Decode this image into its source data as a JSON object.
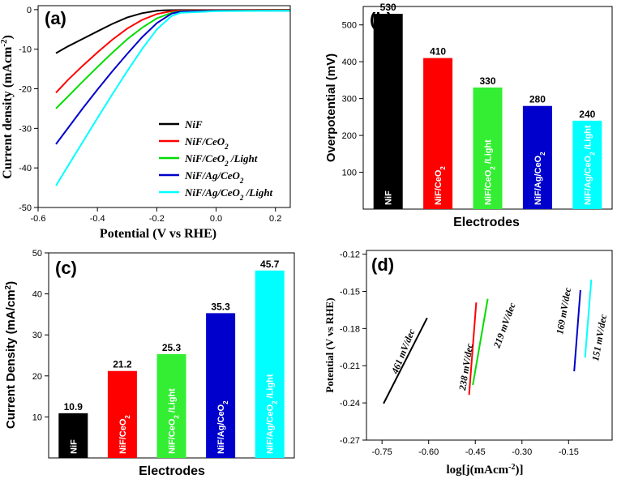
{
  "chart_data": [
    {
      "id": "a",
      "type": "line",
      "panel_label": "(a)",
      "xlabel": "Potential (V vs RHE)",
      "ylabel": "Current density (mAcm",
      "ylabel_sup": "-2",
      "ylabel_close": ")",
      "xlim": [
        -0.6,
        0.25
      ],
      "ylim": [
        -50,
        1
      ],
      "xticks": [
        -0.6,
        -0.4,
        -0.2,
        0.0,
        0.2
      ],
      "xtick_labels": [
        "-0.6",
        "-0.4",
        "-0.2",
        "0.0",
        "0.2"
      ],
      "yticks": [
        0,
        -10,
        -20,
        -30,
        -40,
        -50
      ],
      "ytick_labels": [
        "0",
        "-10",
        "-20",
        "-30",
        "-40",
        "-50"
      ],
      "series": [
        {
          "name": "NiF",
          "color": "#000000",
          "x": [
            -0.54,
            -0.5,
            -0.45,
            -0.4,
            -0.35,
            -0.3,
            -0.25,
            -0.2,
            -0.17,
            -0.12,
            0.0,
            0.25
          ],
          "y": [
            -11,
            -9.3,
            -7.4,
            -5.5,
            -3.6,
            -2.0,
            -0.9,
            -0.3,
            -0.15,
            -0.1,
            -0.1,
            -0.05
          ]
        },
        {
          "name": "NiF/CeO",
          "sub": "2",
          "suffix": "",
          "color": "#ff0000",
          "x": [
            -0.54,
            -0.5,
            -0.45,
            -0.4,
            -0.35,
            -0.3,
            -0.25,
            -0.2,
            -0.15,
            -0.12,
            0.0,
            0.25
          ],
          "y": [
            -21,
            -17.8,
            -14.2,
            -10.8,
            -7.6,
            -4.8,
            -2.6,
            -1.1,
            -0.4,
            -0.2,
            -0.15,
            -0.1
          ]
        },
        {
          "name": "NiF/CeO",
          "sub": "2",
          "suffix": " /Light",
          "color": "#00dd00",
          "x": [
            -0.54,
            -0.5,
            -0.45,
            -0.4,
            -0.35,
            -0.3,
            -0.25,
            -0.2,
            -0.15,
            -0.12,
            0.0,
            0.25
          ],
          "y": [
            -25,
            -22,
            -18.2,
            -14.5,
            -10.9,
            -7.5,
            -4.6,
            -2.2,
            -0.8,
            -0.4,
            -0.25,
            -0.2
          ]
        },
        {
          "name": "NiF/Ag/CeO",
          "sub": "2",
          "suffix": "",
          "color": "#0000cc",
          "x": [
            -0.54,
            -0.5,
            -0.45,
            -0.4,
            -0.35,
            -0.3,
            -0.25,
            -0.2,
            -0.15,
            -0.12,
            0.0,
            0.25
          ],
          "y": [
            -34,
            -30,
            -25,
            -20.2,
            -15.6,
            -11.2,
            -7.0,
            -3.4,
            -1.0,
            -0.5,
            -0.3,
            -0.3
          ]
        },
        {
          "name": "NiF/Ag/CeO",
          "sub": "2",
          "suffix": " /Light",
          "color": "#00ffff",
          "x": [
            -0.54,
            -0.5,
            -0.45,
            -0.4,
            -0.35,
            -0.3,
            -0.25,
            -0.2,
            -0.15,
            -0.12,
            0.0,
            0.25
          ],
          "y": [
            -44.5,
            -39.6,
            -33.5,
            -27.4,
            -21.4,
            -15.6,
            -10.0,
            -5.0,
            -1.6,
            -0.8,
            -0.4,
            -0.3
          ]
        }
      ]
    },
    {
      "id": "b",
      "type": "bar",
      "panel_label": "(b)",
      "xlabel": "Electrodes",
      "ylabel": "Overpotential (mV)",
      "ylim": [
        0,
        550
      ],
      "yticks": [
        100,
        200,
        300,
        400,
        500
      ],
      "categories": [
        {
          "base": "NiF",
          "sub": "",
          "suffix": ""
        },
        {
          "base": "NiF/CeO",
          "sub": "2",
          "suffix": ""
        },
        {
          "base": "NiF/CeO",
          "sub": "2",
          "suffix": " /Light"
        },
        {
          "base": "NiF/Ag/CeO",
          "sub": "2",
          "suffix": ""
        },
        {
          "base": "NiF/Ag/CeO",
          "sub": "2",
          "suffix": " /Light"
        }
      ],
      "values": [
        530,
        410,
        330,
        280,
        240
      ],
      "value_labels": [
        "530",
        "410",
        "330",
        "280",
        "240"
      ],
      "colors": [
        "#000000",
        "#ff0000",
        "#33ee33",
        "#0000cc",
        "#00ffff"
      ]
    },
    {
      "id": "c",
      "type": "bar",
      "panel_label": "(c)",
      "xlabel": "Electrodes",
      "ylabel": "Current Density (mA/cm",
      "ylabel_sup": "2",
      "ylabel_close": ")",
      "ylim": [
        0,
        50
      ],
      "yticks": [
        10,
        20,
        30,
        40,
        50
      ],
      "categories": [
        {
          "base": "NiF",
          "sub": "",
          "suffix": ""
        },
        {
          "base": "NiF/CeO",
          "sub": "2",
          "suffix": ""
        },
        {
          "base": "NiF/CeO",
          "sub": "2",
          "suffix": " /Light"
        },
        {
          "base": "NiF/Ag/CeO",
          "sub": "2",
          "suffix": ""
        },
        {
          "base": "NiF/Ag/CeO",
          "sub": "2",
          "suffix": " /Light"
        }
      ],
      "values": [
        10.9,
        21.2,
        25.3,
        35.3,
        45.7
      ],
      "value_labels": [
        "10.9",
        "21.2",
        "25.3",
        "35.3",
        "45.7"
      ],
      "colors": [
        "#000000",
        "#ff0000",
        "#33ee33",
        "#0000cc",
        "#00ffff"
      ]
    },
    {
      "id": "d",
      "type": "line",
      "panel_label": "(d)",
      "xlabel": "log[j(mAcm",
      "xlabel_sup": "-2",
      "xlabel_close": ")]",
      "ylabel": "Potential (V vs RHE)",
      "xlim": [
        -0.8,
        -0.01
      ],
      "ylim": [
        -0.27,
        -0.117
      ],
      "xticks": [
        -0.75,
        -0.6,
        -0.45,
        -0.3,
        -0.15
      ],
      "xtick_labels": [
        "-0.75",
        "-0.60",
        "-0.45",
        "-0.30",
        "-0.15"
      ],
      "yticks": [
        -0.12,
        -0.15,
        -0.18,
        -0.21,
        -0.24,
        -0.27
      ],
      "ytick_labels": [
        "-0.12",
        "-0.15",
        "-0.18",
        "-0.21",
        "-0.24",
        "-0.27"
      ],
      "series": [
        {
          "name": "NiF",
          "color": "#000000",
          "x": [
            -0.745,
            -0.605
          ],
          "y": [
            -0.2405,
            -0.1715
          ],
          "slope_label": "461 mV/dec"
        },
        {
          "name": "NiF/CeO2",
          "color": "#ff0000",
          "x": [
            -0.47,
            -0.447
          ],
          "y": [
            -0.2335,
            -0.159
          ],
          "slope_label": "238 mV/dec"
        },
        {
          "name": "NiF/CeO2 /Light",
          "color": "#00dd00",
          "x": [
            -0.458,
            -0.41
          ],
          "y": [
            -0.2255,
            -0.156
          ],
          "slope_label": "219 mV/dec"
        },
        {
          "name": "NiF/Ag/CeO2",
          "color": "#0000cc",
          "x": [
            -0.132,
            -0.112
          ],
          "y": [
            -0.2145,
            -0.149
          ],
          "slope_label": "169 mV/dec"
        },
        {
          "name": "NiF/Ag/CeO2 /Light",
          "color": "#00ffff",
          "x": [
            -0.097,
            -0.077
          ],
          "y": [
            -0.2035,
            -0.1405
          ],
          "slope_label": "151 mV/dec"
        }
      ]
    }
  ]
}
